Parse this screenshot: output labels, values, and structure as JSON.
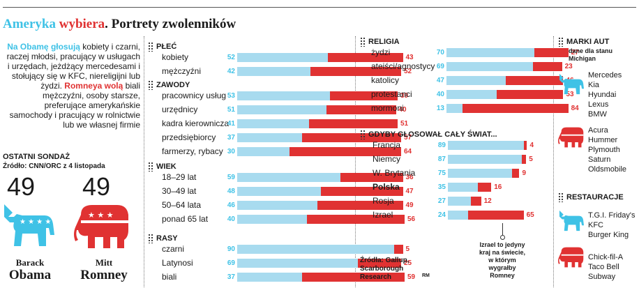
{
  "title": {
    "part1": "Ameryka ",
    "part2": "wybiera",
    "part3": ". Portrety zwolenników"
  },
  "intro": {
    "obama_lead": "Na Obamę głosują",
    "obama_text": " kobiety i czarni, raczej młodsi, pracujący w usługach i urzędach, jeżdżący mercedesami i stołujący się w KFC, niereligijni lub żydzi. ",
    "romney_lead": "Romneya wolą",
    "romney_text": " biali mężczyźni, osoby starsze, preferujące amerykańskie samochody i pracujący w rolnictwie lub we własnej firmie"
  },
  "poll": {
    "title": "OSTATNI SONDAŻ",
    "source": "Źródło: CNN/ORC z 4 listopada",
    "obama_pct": "49",
    "romney_pct": "49",
    "obama_first": "Barack",
    "obama_last": "Obama",
    "romney_first": "Mitt",
    "romney_last": "Romney"
  },
  "colors": {
    "obama": "#a8dbef",
    "obama_text": "#3fc2e6",
    "romney": "#e03232"
  },
  "chart_data": [
    {
      "type": "bar",
      "title": "PŁEĆ",
      "categories": [
        "kobiety",
        "mężczyźni"
      ],
      "series": [
        {
          "values": [
            52,
            42
          ]
        },
        {
          "values": [
            43,
            52
          ]
        }
      ]
    },
    {
      "type": "bar",
      "title": "ZAWODY",
      "categories": [
        "pracownicy usług",
        "urzędnicy",
        "kadra kierownicza",
        "przedsiębiorcy",
        "farmerzy, rybacy"
      ],
      "series": [
        {
          "values": [
            53,
            51,
            41,
            37,
            30
          ]
        },
        {
          "values": [
            39,
            40,
            51,
            57,
            64
          ]
        }
      ]
    },
    {
      "type": "bar",
      "title": "WIEK",
      "categories": [
        "18–29 lat",
        "30–49 lat",
        "50–64 lata",
        "ponad 65 lat"
      ],
      "series": [
        {
          "values": [
            59,
            48,
            46,
            40
          ]
        },
        {
          "values": [
            36,
            47,
            49,
            56
          ]
        }
      ]
    },
    {
      "type": "bar",
      "title": "RASY",
      "categories": [
        "czarni",
        "Latynosi",
        "biali"
      ],
      "series": [
        {
          "values": [
            90,
            69,
            37
          ]
        },
        {
          "values": [
            5,
            25,
            59
          ]
        }
      ]
    },
    {
      "type": "bar",
      "title": "RELIGIA",
      "categories": [
        "żydzi",
        "ateiści/agnostycy",
        "katolicy",
        "protestanci",
        "mormoni"
      ],
      "series": [
        {
          "values": [
            70,
            69,
            47,
            40,
            13
          ]
        },
        {
          "values": [
            27,
            23,
            46,
            53,
            84
          ]
        }
      ]
    },
    {
      "type": "bar",
      "title": "GDYBY GŁOSOWAŁ CAŁY ŚWIAT...",
      "categories": [
        "Francja",
        "Niemcy",
        "W. Brytania",
        "Polska",
        "Rosja",
        "Izrael"
      ],
      "series": [
        {
          "values": [
            89,
            87,
            75,
            35,
            27,
            24
          ]
        },
        {
          "values": [
            4,
            5,
            9,
            16,
            12,
            65
          ]
        }
      ]
    }
  ],
  "brands": {
    "title": "MARKI AUT",
    "subtitle": "dane dla stanu Michigan",
    "obama": [
      "Mercedes",
      "Kia",
      "Hyundai",
      "Lexus",
      "BMW"
    ],
    "romney": [
      "Acura",
      "Hummer",
      "Plymouth",
      "Saturn",
      "Oldsmobile"
    ]
  },
  "restaurants": {
    "title": "RESTAURACJE",
    "obama": [
      "T.G.I. Friday's",
      "KFC",
      "Burger King"
    ],
    "romney": [
      "Chick-fil-A",
      "Taco Bell",
      "Subway"
    ]
  },
  "sources": {
    "line1": "Źródła: Gallup,",
    "line2": "Scarborough",
    "line3": "Research",
    "initials": "RM"
  },
  "israel_note": {
    "line1": "Izrael to jedyny",
    "line2": "kraj na świecie,",
    "line3": "w którym",
    "line4": "wygrałby",
    "line5": "Romney"
  },
  "icons": {
    "obama": "donkey-icon",
    "romney": "elephant-icon"
  }
}
